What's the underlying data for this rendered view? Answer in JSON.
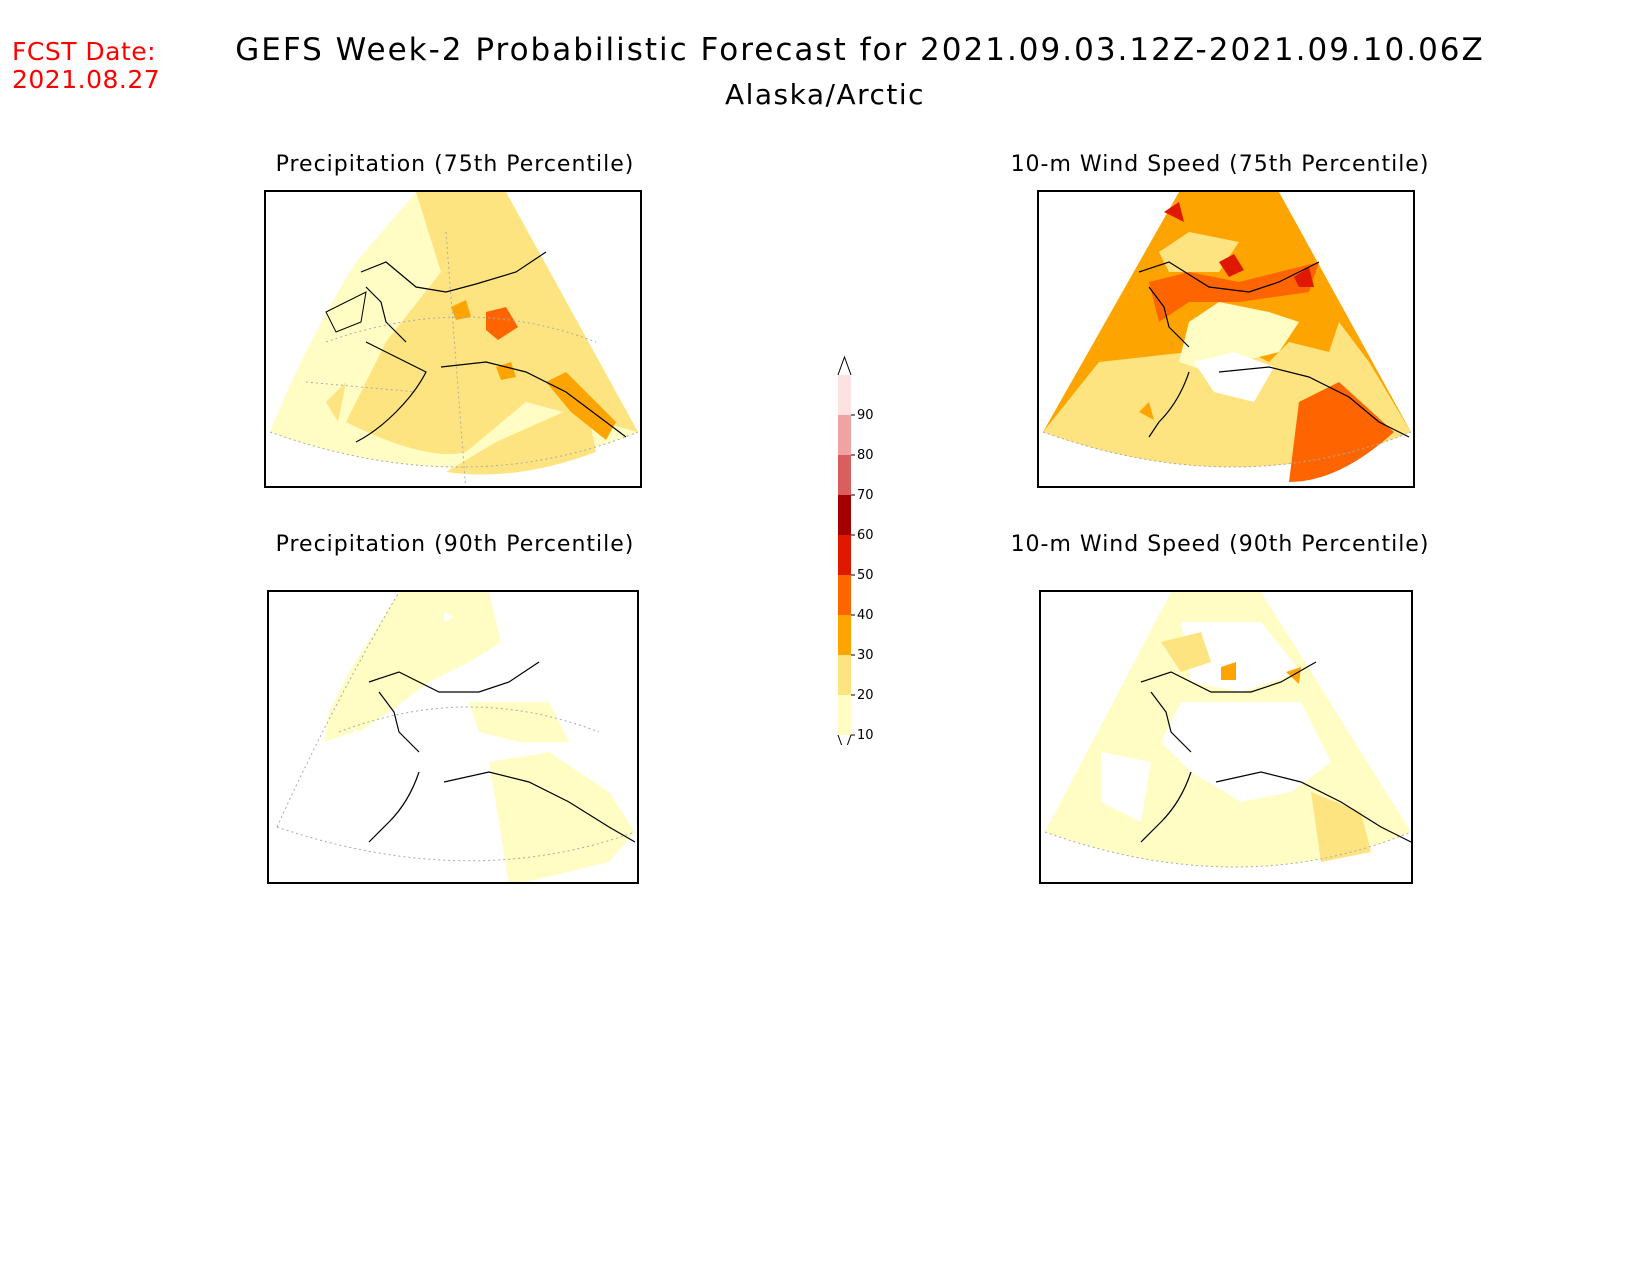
{
  "header": {
    "fcst_label": "FCST Date:",
    "fcst_date": "2021.08.27",
    "title": "GEFS Week-2 Probabilistic Forecast for 2021.09.03.12Z-2021.09.10.06Z",
    "subtitle": "Alaska/Arctic"
  },
  "panels": [
    {
      "title": "Precipitation (75th Percentile)"
    },
    {
      "title": "10-m Wind Speed (75th Percentile)"
    },
    {
      "title": "Precipitation (90th Percentile)"
    },
    {
      "title": "10-m Wind Speed (90th Percentile)"
    }
  ],
  "colorbar": {
    "levels": [
      10,
      20,
      30,
      40,
      50,
      60,
      70,
      80,
      90
    ],
    "colors": [
      "#fffdc4",
      "#fde480",
      "#fea400",
      "#fe6400",
      "#e11800",
      "#a50000",
      "#d95f5f",
      "#f0a3a3",
      "#fde2e2"
    ]
  }
}
